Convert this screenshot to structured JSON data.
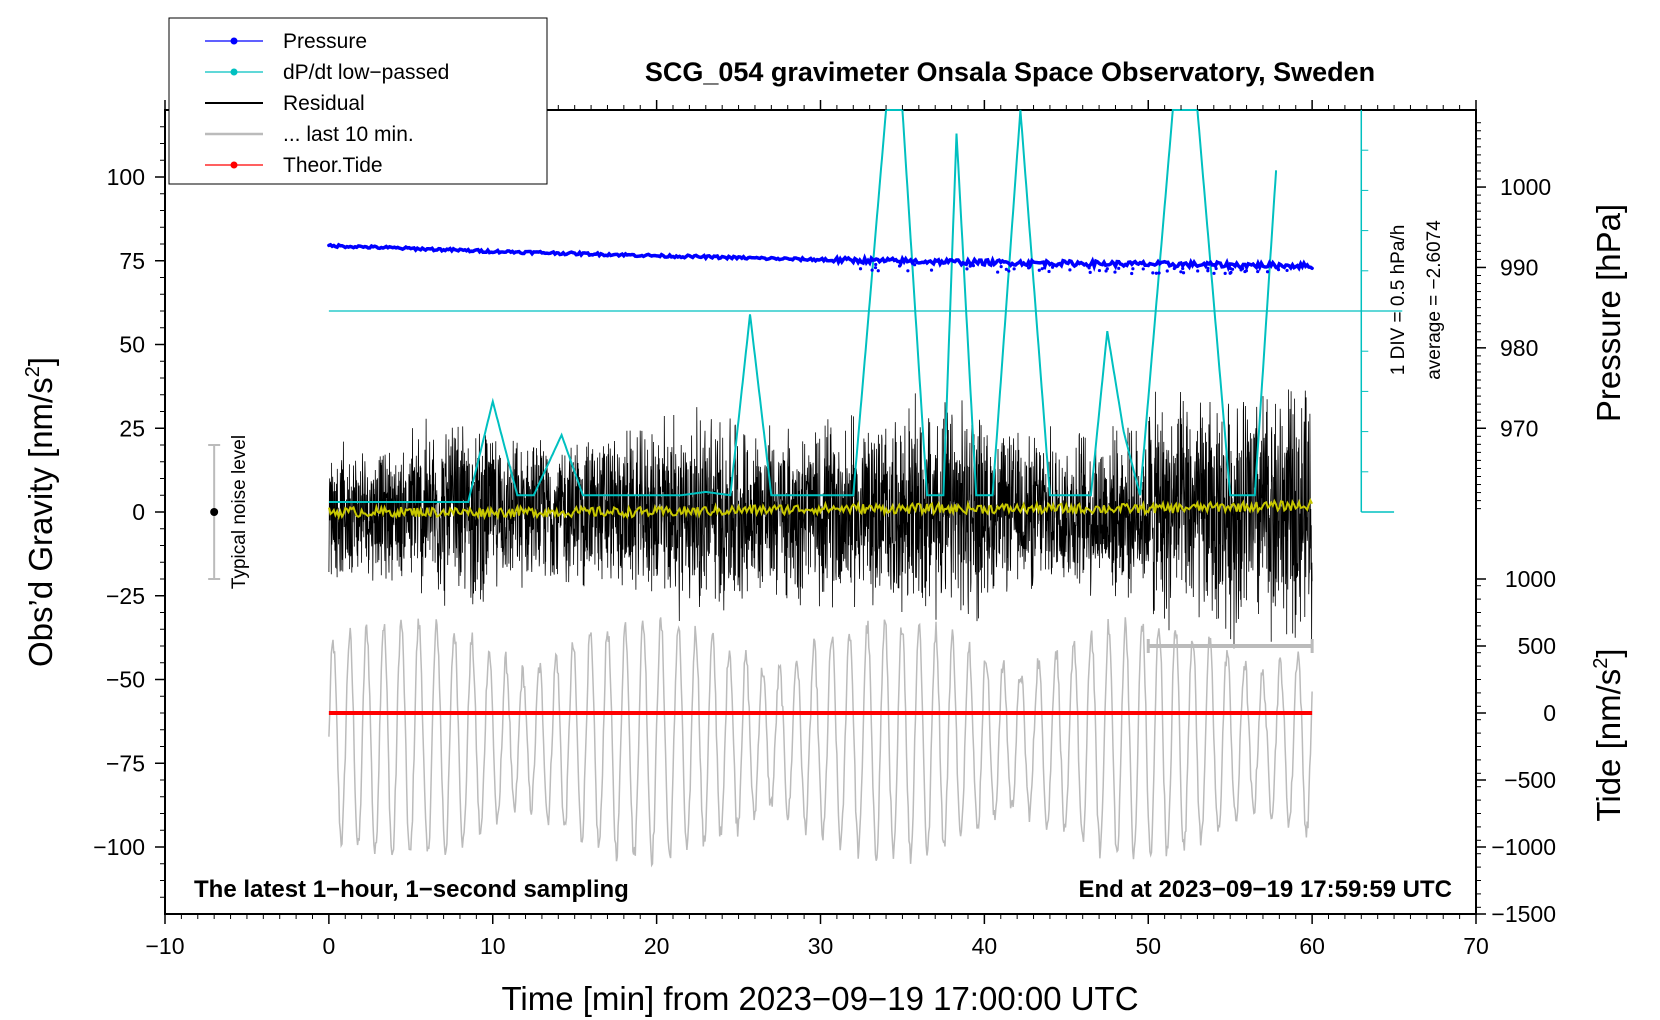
{
  "chart_data": {
    "type": "line",
    "title": "SCG_054 gravimeter Onsala Space Observatory, Sweden",
    "xlabel": "Time [min] from 2023−09−19 17:00:00 UTC",
    "ylabel_left": "Obs’d Gravity [nm/s",
    "ylabel_left_sup": "2",
    "ylabel_left_close": "]",
    "ylabel_right_pressure": "Pressure [hPa]",
    "ylabel_right_tide": "Tide [nm/s",
    "ylabel_right_tide_sup": "2",
    "ylabel_right_tide_close": "]",
    "xlim": [
      -10,
      70
    ],
    "ylim": [
      -120,
      120
    ],
    "xticks": [
      -10,
      0,
      10,
      20,
      30,
      40,
      50,
      60,
      70
    ],
    "xtick_labels": [
      "−10",
      "0",
      "10",
      "20",
      "30",
      "40",
      "50",
      "60",
      "70"
    ],
    "yticks": [
      100,
      75,
      50,
      25,
      0,
      -25,
      -50,
      -75,
      -100
    ],
    "ytick_labels": [
      "100",
      "75",
      "50",
      "25",
      "0",
      "−25",
      "−50",
      "−75",
      "−100"
    ],
    "pressure_ticks": [
      1000,
      990,
      980,
      970
    ],
    "pressure_tick_labels": [
      "1000",
      "990",
      "980",
      "970"
    ],
    "pressure_ticks_g": [
      97,
      73,
      49,
      25
    ],
    "tide_ticks": [
      1000,
      500,
      0,
      -500,
      -1000,
      -1500
    ],
    "tide_tick_labels": [
      "1000",
      "500",
      "0",
      "−500",
      "−1000",
      "−1500"
    ],
    "tide_ticks_g": [
      -20,
      -40,
      -60,
      -80,
      -100,
      -120
    ],
    "legend": [
      {
        "label": "Pressure",
        "color": "#0000ff",
        "marker": true
      },
      {
        "label": "dP/dt low−passed",
        "color": "#00c0c0",
        "marker": true
      },
      {
        "label": "Residual",
        "color": "#000000",
        "marker": false
      },
      {
        "label": "... last 10 min.",
        "color": "#bbbbbb",
        "marker": false
      },
      {
        "label": "Theor.Tide",
        "color": "#ff0000",
        "marker": true
      }
    ],
    "legend_location": "top-left",
    "noise_label": "Typical noise level",
    "noise_range": [
      -20,
      20
    ],
    "dpdt_div_label": "1 DIV = 0.5 hPa/h",
    "dpdt_avg_label": "average = −2.6074",
    "dpdt_reference_level": 60,
    "annotation_left": "The latest 1−hour, 1−second sampling",
    "annotation_right": "End at 2023−09−19 17:59:59 UTC",
    "last10_range": [
      50,
      60
    ],
    "last10_level": -40,
    "series": [
      {
        "name": "Pressure",
        "color": "#0000ff",
        "x": [
          0,
          10,
          20,
          30,
          40,
          50,
          60
        ],
        "values": [
          79.5,
          77.8,
          76.5,
          75.3,
          74.5,
          74.0,
          73.5
        ]
      },
      {
        "name": "dP/dt low-passed",
        "color": "#00c0c0",
        "x": [
          0,
          8.5,
          10,
          11.5,
          12.5,
          14.2,
          15.5,
          18,
          21.5,
          23,
          24.5,
          25.7,
          27,
          32,
          34,
          35,
          36.5,
          37.5,
          38.3,
          39.5,
          40.5,
          42.2,
          44,
          46.5,
          47.5,
          48.5,
          49.5,
          51.5,
          53,
          55,
          56.5,
          57.8
        ],
        "values": [
          3,
          3,
          33,
          5,
          5,
          23,
          5,
          5,
          5,
          6,
          5,
          59,
          5,
          5,
          120,
          120,
          5,
          5,
          113,
          5,
          5,
          120,
          5,
          5,
          54,
          24,
          5,
          120,
          120,
          5,
          5,
          102
        ]
      },
      {
        "name": "Residual",
        "color": "#000000",
        "noise_amplitude_by_10min": [
          18,
          25,
          20,
          22,
          28,
          24,
          26,
          30,
          22,
          23,
          32,
          35
        ]
      },
      {
        "name": "Residual (smoothed)",
        "color": "#c8c800",
        "x": [
          0,
          10,
          20,
          30,
          40,
          50,
          60
        ],
        "values": [
          0,
          0,
          0,
          1,
          1,
          1,
          2
        ]
      },
      {
        "name": "... last 10 min.",
        "color": "#bbbbbb",
        "amplitude": 35,
        "center": -68
      },
      {
        "name": "Theor.Tide",
        "color": "#ff0000",
        "x": [
          0,
          60
        ],
        "values": [
          -60,
          -60
        ]
      }
    ]
  }
}
